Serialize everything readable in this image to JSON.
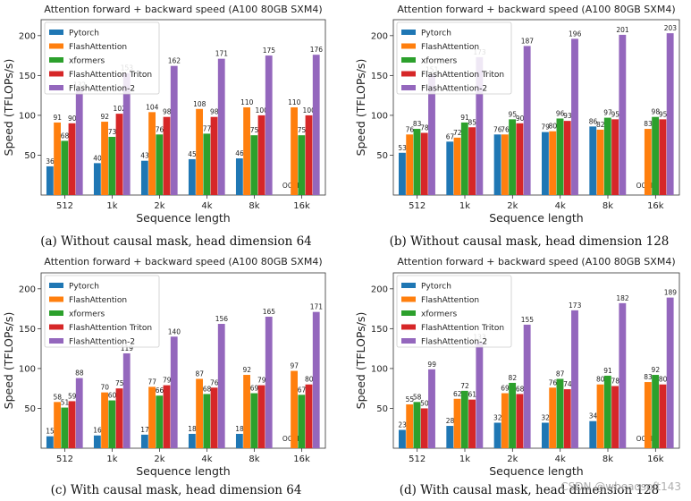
{
  "colors": {
    "Pytorch": "#1f77b4",
    "FlashAttention": "#ff7f0e",
    "xformers": "#2ca02c",
    "FlashAttention Triton": "#d62728",
    "FlashAttention-2": "#9467bd"
  },
  "oom_label": "OOM",
  "watermark": "CSDN @wbeaosoft143",
  "chart_data": [
    {
      "type": "bar",
      "title": "Attention forward + backward speed (A100 80GB SXM4)",
      "caption": "(a) Without causal mask, head dimension 64",
      "xlabel": "Sequence length",
      "ylabel": "Speed (TFLOPs/s)",
      "ylim": [
        0,
        220
      ],
      "yticks": [
        "50",
        "100",
        "150",
        "200"
      ],
      "categories": [
        "512",
        "1k",
        "2k",
        "4k",
        "8k",
        "16k"
      ],
      "legend_position": "top-left",
      "series": [
        {
          "name": "Pytorch",
          "values": [
            36,
            40,
            43,
            45,
            46,
            null
          ]
        },
        {
          "name": "FlashAttention",
          "values": [
            91,
            92,
            104,
            108,
            110,
            110
          ]
        },
        {
          "name": "xformers",
          "values": [
            68,
            73,
            76,
            77,
            75,
            75
          ]
        },
        {
          "name": "FlashAttention Triton",
          "values": [
            90,
            102,
            98,
            98,
            100,
            100
          ]
        },
        {
          "name": "FlashAttention-2",
          "values": [
            132,
            153,
            162,
            171,
            175,
            176
          ]
        }
      ]
    },
    {
      "type": "bar",
      "title": "Attention forward + backward speed (A100 80GB SXM4)",
      "caption": "(b) Without causal mask, head dimension 128",
      "xlabel": "Sequence length",
      "ylabel": "Speed (TFLOPs/s)",
      "ylim": [
        0,
        220
      ],
      "yticks": [
        "50",
        "100",
        "150",
        "200"
      ],
      "categories": [
        "512",
        "1k",
        "2k",
        "4k",
        "8k",
        "16k"
      ],
      "legend_position": "top-left",
      "series": [
        {
          "name": "Pytorch",
          "values": [
            53,
            67,
            76,
            79,
            86,
            null
          ]
        },
        {
          "name": "FlashAttention",
          "values": [
            76,
            72,
            76,
            80,
            82,
            83
          ]
        },
        {
          "name": "xformers",
          "values": [
            83,
            91,
            95,
            96,
            97,
            98
          ]
        },
        {
          "name": "FlashAttention Triton",
          "values": [
            78,
            85,
            90,
            93,
            95,
            95
          ]
        },
        {
          "name": "FlashAttention-2",
          "values": [
            151,
            173,
            187,
            196,
            201,
            203
          ]
        }
      ]
    },
    {
      "type": "bar",
      "title": "Attention forward + backward speed (A100 80GB SXM4)",
      "caption": "(c) With causal mask, head dimension 64",
      "xlabel": "Sequence length",
      "ylabel": "Speed (TFLOPs/s)",
      "ylim": [
        0,
        220
      ],
      "yticks": [
        "50",
        "100",
        "150",
        "200"
      ],
      "categories": [
        "512",
        "1k",
        "2k",
        "4k",
        "8k",
        "16k"
      ],
      "legend_position": "top-left",
      "series": [
        {
          "name": "Pytorch",
          "values": [
            15,
            16,
            17,
            18,
            18,
            null
          ]
        },
        {
          "name": "FlashAttention",
          "values": [
            58,
            70,
            77,
            87,
            92,
            97
          ]
        },
        {
          "name": "xformers",
          "values": [
            51,
            60,
            66,
            68,
            69,
            67
          ]
        },
        {
          "name": "FlashAttention Triton",
          "values": [
            59,
            75,
            79,
            76,
            79,
            80
          ]
        },
        {
          "name": "FlashAttention-2",
          "values": [
            88,
            119,
            140,
            156,
            165,
            171
          ]
        }
      ]
    },
    {
      "type": "bar",
      "title": "Attention forward + backward speed (A100 80GB SXM4)",
      "caption": "(d) With causal mask, head dimension 128",
      "xlabel": "Sequence length",
      "ylabel": "Speed (TFLOPs/s)",
      "ylim": [
        0,
        220
      ],
      "yticks": [
        "50",
        "100",
        "150",
        "200"
      ],
      "categories": [
        "512",
        "1k",
        "2k",
        "4k",
        "8k",
        "16k"
      ],
      "legend_position": "top-left",
      "series": [
        {
          "name": "Pytorch",
          "values": [
            23,
            28,
            32,
            32,
            34,
            null
          ]
        },
        {
          "name": "FlashAttention",
          "values": [
            55,
            62,
            69,
            76,
            80,
            83
          ]
        },
        {
          "name": "xformers",
          "values": [
            58,
            72,
            82,
            87,
            91,
            92
          ]
        },
        {
          "name": "FlashAttention Triton",
          "values": [
            50,
            61,
            68,
            74,
            78,
            80
          ]
        },
        {
          "name": "FlashAttention-2",
          "values": [
            99,
            133,
            155,
            173,
            182,
            189
          ]
        }
      ]
    }
  ]
}
